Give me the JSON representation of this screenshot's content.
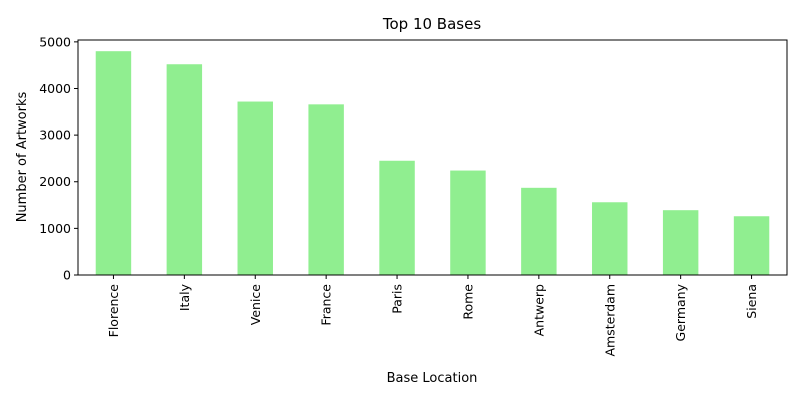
{
  "chart_data": {
    "type": "bar",
    "title": "Top 10 Bases",
    "xlabel": "Base Location",
    "ylabel": "Number of Artworks",
    "categories": [
      "Florence",
      "Italy",
      "Venice",
      "France",
      "Paris",
      "Rome",
      "Antwerp",
      "Amsterdam",
      "Germany",
      "Siena"
    ],
    "values": [
      4800,
      4520,
      3720,
      3660,
      2450,
      2240,
      1870,
      1560,
      1390,
      1260
    ],
    "ylim": [
      0,
      5040
    ],
    "yticks": [
      0,
      1000,
      2000,
      3000,
      4000,
      5000
    ],
    "grid": false,
    "legend": "none",
    "bar_color": "#90ee90"
  }
}
